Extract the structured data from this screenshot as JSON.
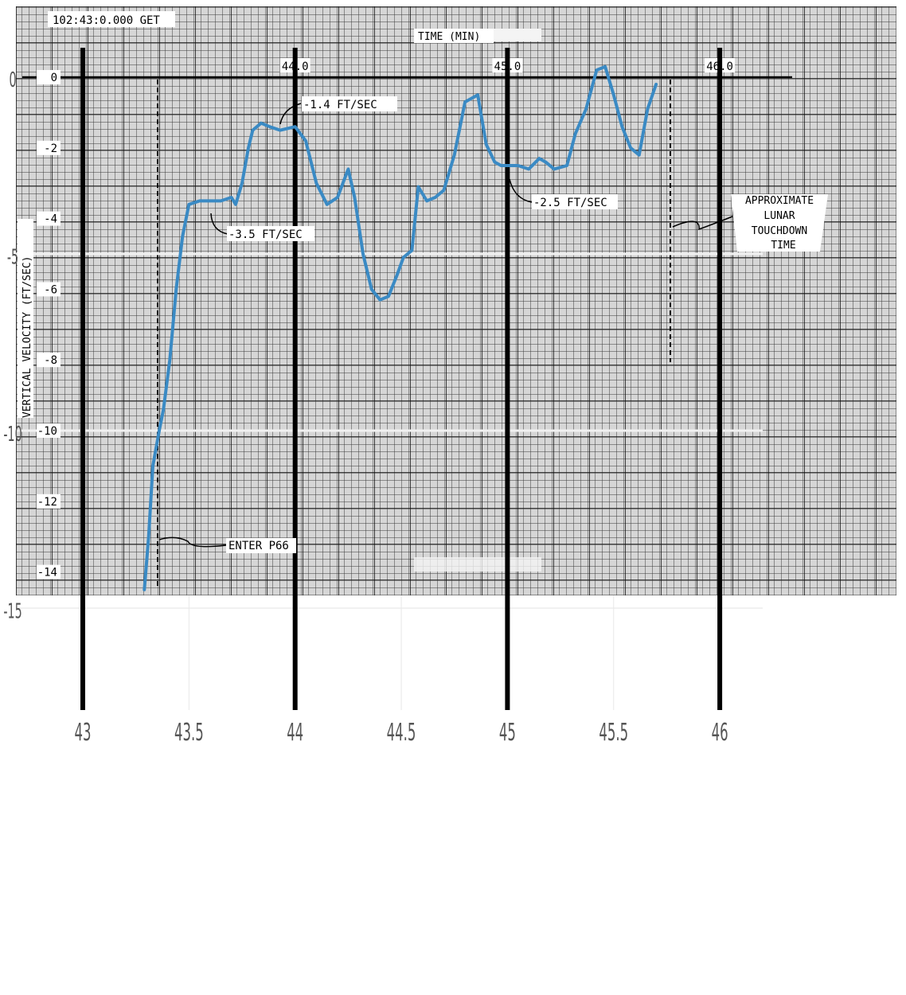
{
  "chart_data": {
    "type": "line",
    "header": "102:43:0.000 GET",
    "xlabel": "TIME (MIN)",
    "ylabel": "VERTICAL VELOCITY (FT/SEC)",
    "paper_x_ticks": [
      "44.0",
      "45.0",
      "46.0"
    ],
    "paper_y_ticks": [
      "0",
      "-2",
      "-4",
      "-6",
      "-8",
      "-10",
      "-12",
      "-14"
    ],
    "outer_x_ticks": [
      "43",
      "43.5",
      "44",
      "44.5",
      "45",
      "45.5",
      "46"
    ],
    "outer_y_ticks": [
      "0",
      "-5",
      "-10",
      "-15"
    ],
    "xlim": [
      43,
      46
    ],
    "ylim": [
      -15,
      0
    ],
    "grid": true,
    "series": [
      {
        "color": "#3a8ac4",
        "x": [
          43.29,
          43.31,
          43.33,
          43.36,
          43.38,
          43.41,
          43.44,
          43.47,
          43.5,
          43.55,
          43.6,
          43.65,
          43.7,
          43.72,
          43.75,
          43.78,
          43.8,
          43.84,
          43.88,
          43.93,
          44.0,
          44.05,
          44.1,
          44.15,
          44.2,
          44.25,
          44.28,
          44.32,
          44.36,
          44.4,
          44.44,
          44.48,
          44.51,
          44.55,
          44.58,
          44.62,
          44.66,
          44.7,
          44.75,
          44.8,
          44.86,
          44.9,
          44.94,
          44.97,
          45.0,
          45.05,
          45.1,
          45.15,
          45.18,
          45.22,
          45.28,
          45.32,
          45.37,
          45.42,
          45.46,
          45.5,
          45.54,
          45.58,
          45.62,
          45.66,
          45.7
        ],
        "values": [
          -14.5,
          -13.0,
          -11.0,
          -10.0,
          -9.4,
          -8.0,
          -6.0,
          -4.5,
          -3.6,
          -3.5,
          -3.5,
          -3.5,
          -3.4,
          -3.6,
          -3.0,
          -2.0,
          -1.5,
          -1.3,
          -1.4,
          -1.5,
          -1.4,
          -1.8,
          -3.0,
          -3.6,
          -3.4,
          -2.6,
          -3.4,
          -5.0,
          -6.0,
          -6.3,
          -6.2,
          -5.6,
          -5.1,
          -4.9,
          -3.1,
          -3.5,
          -3.4,
          -3.2,
          -2.2,
          -0.7,
          -0.5,
          -1.9,
          -2.4,
          -2.5,
          -2.5,
          -2.5,
          -2.6,
          -2.3,
          -2.4,
          -2.6,
          -2.5,
          -1.6,
          -0.9,
          0.2,
          0.3,
          -0.5,
          -1.4,
          -2.0,
          -2.2,
          -0.9,
          -0.2
        ]
      }
    ],
    "annotations": [
      {
        "text": "-1.4 FT/SEC"
      },
      {
        "text": "-3.5 FT/SEC"
      },
      {
        "text": "-2.5 FT/SEC"
      },
      {
        "text": "ENTER P66"
      },
      {
        "lines": [
          "APPROXIMATE",
          "LUNAR",
          "TOUCHDOWN",
          "TIME"
        ]
      }
    ]
  }
}
